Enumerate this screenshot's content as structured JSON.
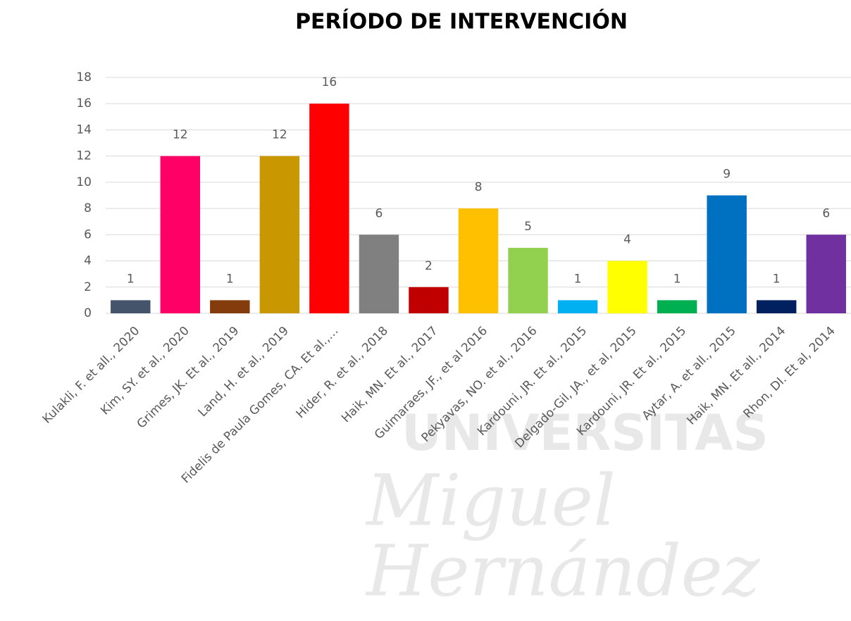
{
  "chart_data": {
    "type": "bar",
    "title": "PERÍODO DE INTERVENCIÓN",
    "categories": [
      "Kulakli, F. et all., 2020",
      "Kim, SY. et al., 2020",
      "Grimes, JK. Et al., 2019",
      "Land, H. et al., 2019",
      "Fidelis de Paula Gomes, CA. Et al.,…",
      "Hider, R. et al., 2018",
      "Haik, MN. Et al., 2017",
      "Guimaraes, JF., et al 2016",
      "Pekyavas, NO. et al., 2016",
      "Kardouni, JR. Et al., 2015",
      "Delgado-Gil, JA., et al, 2015",
      "Kardouni, JR. Et al., 2015",
      "Aytar, A. et all., 2015",
      "Haik, MN. Et all., 2014",
      "Rhon, DI. Et al, 2014"
    ],
    "values": [
      1,
      12,
      1,
      12,
      16,
      6,
      2,
      8,
      5,
      1,
      4,
      1,
      9,
      1,
      6
    ],
    "colors": [
      "#44546a",
      "#ff0066",
      "#843c0c",
      "#c99800",
      "#ff0000",
      "#808080",
      "#c00000",
      "#ffc000",
      "#92d050",
      "#00b0f0",
      "#ffff00",
      "#00b050",
      "#0070c0",
      "#002060",
      "#7030a0"
    ],
    "ylim": [
      0,
      18
    ],
    "yticks": [
      0,
      2,
      4,
      6,
      8,
      10,
      12,
      14,
      16,
      18
    ],
    "grid": true
  },
  "watermark": [
    "UNIVERSITAS",
    "Miguel",
    "Hernández"
  ]
}
